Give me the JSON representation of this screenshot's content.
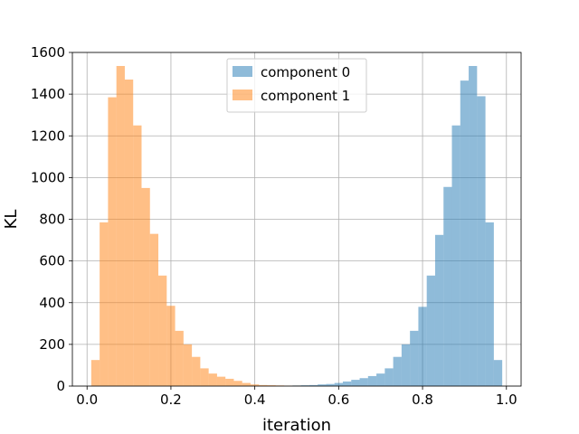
{
  "chart_data": {
    "type": "bar",
    "subtype": "overlapping-histogram",
    "title": "",
    "xlabel": "iteration",
    "ylabel": "KL",
    "xlim": [
      -0.035,
      1.035
    ],
    "ylim": [
      0,
      1600
    ],
    "xticks": [
      0.0,
      0.2,
      0.4,
      0.6,
      0.8,
      1.0
    ],
    "xtick_labels": [
      "0.0",
      "0.2",
      "0.4",
      "0.6",
      "0.8",
      "1.0"
    ],
    "yticks": [
      0,
      200,
      400,
      600,
      800,
      1000,
      1200,
      1400,
      1600
    ],
    "ytick_labels": [
      "0",
      "200",
      "400",
      "600",
      "800",
      "1000",
      "1200",
      "1400",
      "1600"
    ],
    "grid": true,
    "legend_position": "upper center",
    "bin_width": 0.02,
    "series": [
      {
        "name": "component 0",
        "color": "#1f77b4",
        "alpha": 0.5,
        "bin_starts": [
          0.47,
          0.49,
          0.51,
          0.53,
          0.55,
          0.57,
          0.59,
          0.61,
          0.63,
          0.65,
          0.67,
          0.69,
          0.71,
          0.73,
          0.75,
          0.77,
          0.79,
          0.81,
          0.83,
          0.85,
          0.87,
          0.89,
          0.91,
          0.93,
          0.95,
          0.97
        ],
        "values": [
          2,
          3,
          4,
          5,
          8,
          10,
          15,
          22,
          30,
          38,
          48,
          60,
          85,
          140,
          200,
          265,
          380,
          530,
          725,
          955,
          1250,
          1465,
          1535,
          1390,
          785,
          125
        ]
      },
      {
        "name": "component 1",
        "color": "#ff7f0e",
        "alpha": 0.5,
        "bin_starts": [
          0.01,
          0.03,
          0.05,
          0.07,
          0.09,
          0.11,
          0.13,
          0.15,
          0.17,
          0.19,
          0.21,
          0.23,
          0.25,
          0.27,
          0.29,
          0.31,
          0.33,
          0.35,
          0.37,
          0.39,
          0.41,
          0.43,
          0.45,
          0.47,
          0.49,
          0.51
        ],
        "values": [
          125,
          785,
          1385,
          1535,
          1470,
          1250,
          950,
          730,
          530,
          385,
          265,
          200,
          140,
          85,
          60,
          45,
          35,
          25,
          15,
          8,
          5,
          4,
          3,
          2,
          2,
          1
        ]
      }
    ]
  }
}
